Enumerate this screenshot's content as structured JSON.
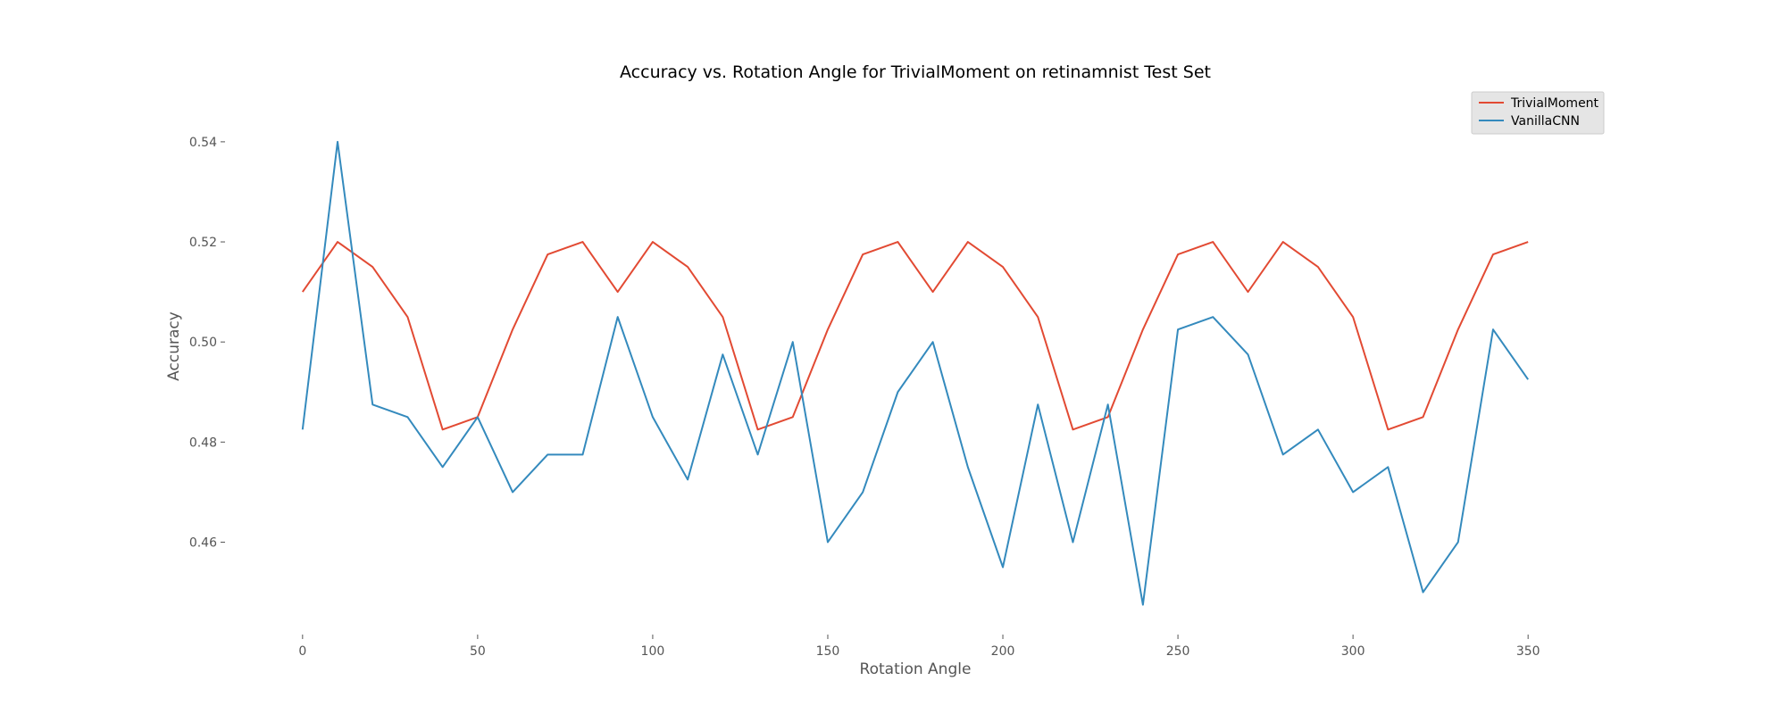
{
  "chart_data": {
    "type": "line",
    "title": "Accuracy vs. Rotation Angle for TrivialMoment on retinamnist Test Set",
    "xlabel": "Rotation Angle",
    "ylabel": "Accuracy",
    "x": [
      0,
      10,
      20,
      30,
      40,
      50,
      60,
      70,
      80,
      90,
      100,
      110,
      120,
      130,
      140,
      150,
      160,
      170,
      180,
      190,
      200,
      210,
      220,
      230,
      240,
      250,
      260,
      270,
      280,
      290,
      300,
      310,
      320,
      330,
      340,
      350
    ],
    "xticks": [
      0,
      50,
      100,
      150,
      200,
      250,
      300,
      350
    ],
    "yticks": [
      0.46,
      0.48,
      0.5,
      0.52,
      0.54
    ],
    "xtick_labels": [
      "0",
      "50",
      "100",
      "150",
      "200",
      "250",
      "300",
      "350"
    ],
    "ytick_labels": [
      "0.46",
      "0.48",
      "0.50",
      "0.52",
      "0.54"
    ],
    "xlim": [
      -15,
      365
    ],
    "ylim": [
      0.4435,
      0.5505
    ],
    "grid": false,
    "legend_position": "top-right",
    "series": [
      {
        "name": "TrivialMoment",
        "color": "#E24A33",
        "values": [
          0.51,
          0.52,
          0.515,
          0.505,
          0.4825,
          0.485,
          0.5025,
          0.5175,
          0.52,
          0.51,
          0.52,
          0.515,
          0.505,
          0.4825,
          0.485,
          0.5025,
          0.5175,
          0.52,
          0.51,
          0.52,
          0.515,
          0.505,
          0.4825,
          0.485,
          0.5025,
          0.5175,
          0.52,
          0.51,
          0.52,
          0.515,
          0.505,
          0.4825,
          0.485,
          0.5025,
          0.5175,
          0.52
        ]
      },
      {
        "name": "VanillaCNN",
        "color": "#348ABD",
        "values": [
          0.4825,
          0.54,
          0.4875,
          0.485,
          0.475,
          0.485,
          0.47,
          0.4775,
          0.4775,
          0.505,
          0.485,
          0.4725,
          0.4975,
          0.4775,
          0.5,
          0.46,
          0.47,
          0.49,
          0.5,
          0.475,
          0.455,
          0.4875,
          0.46,
          0.4875,
          0.4475,
          0.5025,
          0.505,
          0.4975,
          0.4775,
          0.4825,
          0.47,
          0.475,
          0.45,
          0.46,
          0.5025,
          0.4925
        ]
      }
    ]
  }
}
